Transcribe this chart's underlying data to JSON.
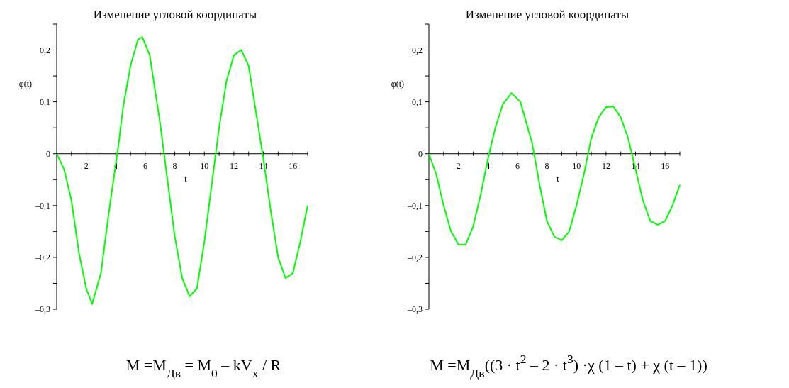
{
  "chart_data": [
    {
      "type": "line",
      "title": "Изменение угловой координаты",
      "xlabel": "t",
      "ylabel": "φ(t)",
      "xlim": [
        0,
        17
      ],
      "ylim": [
        -0.3,
        0.25
      ],
      "xticks": [
        {
          "value": 1,
          "label": null
        },
        2,
        {
          "value": 3,
          "label": null
        },
        4,
        {
          "value": 5,
          "label": null
        },
        6,
        {
          "value": 7,
          "label": null
        },
        8,
        {
          "value": 9,
          "label": null
        },
        10,
        {
          "value": 11,
          "label": null
        },
        12,
        {
          "value": 13,
          "label": null
        },
        14,
        {
          "value": 15,
          "label": null
        },
        16,
        {
          "value": 17,
          "label": null
        }
      ],
      "yticks": [
        {
          "value": -0.3,
          "label": "–0,3"
        },
        {
          "value": -0.25,
          "label": null
        },
        {
          "value": -0.2,
          "label": "–0,2"
        },
        {
          "value": -0.15,
          "label": null
        },
        {
          "value": -0.1,
          "label": "–0,1"
        },
        {
          "value": -0.05,
          "label": null
        },
        0,
        {
          "value": 0.05,
          "label": null
        },
        {
          "value": 0.1,
          "label": "0,1"
        },
        {
          "value": 0.15,
          "label": null
        },
        {
          "value": 0.2,
          "label": "0,2"
        },
        {
          "value": 0.25,
          "label": null
        }
      ],
      "series": [
        {
          "color": "#00ff00",
          "x": [
            0,
            0.5,
            1,
            1.5,
            2,
            2.4,
            3,
            3.5,
            4,
            4.2,
            4.5,
            5,
            5.5,
            5.8,
            6.3,
            7,
            7.5,
            8,
            8.5,
            9,
            9.5,
            10,
            10.5,
            11,
            11.5,
            12,
            12.5,
            13,
            13.5,
            14,
            14.5,
            15,
            15.5,
            16,
            16.5,
            17
          ],
          "values": [
            0,
            -0.03,
            -0.09,
            -0.19,
            -0.26,
            -0.29,
            -0.23,
            -0.12,
            -0.02,
            0.02,
            0.09,
            0.17,
            0.22,
            0.225,
            0.19,
            0.06,
            -0.05,
            -0.16,
            -0.24,
            -0.275,
            -0.26,
            -0.17,
            -0.06,
            0.05,
            0.14,
            0.19,
            0.2,
            0.17,
            0.08,
            -0.01,
            -0.11,
            -0.2,
            -0.24,
            -0.23,
            -0.17,
            -0.1
          ]
        }
      ],
      "grid": false,
      "marker": "none",
      "line_style": "solid",
      "annotations": [
        "M =M$_{Дв}$ = M$_{0}$  –  kV$_{x}$ / R"
      ]
    },
    {
      "type": "line",
      "title": "Изменение угловой координаты",
      "xlabel": "t",
      "ylabel": "φ(t)",
      "xlim": [
        0,
        17
      ],
      "ylim": [
        -0.3,
        0.25
      ],
      "xticks": [
        {
          "value": 1,
          "label": null
        },
        2,
        {
          "value": 3,
          "label": null
        },
        4,
        {
          "value": 5,
          "label": null
        },
        6,
        {
          "value": 7,
          "label": null
        },
        8,
        {
          "value": 9,
          "label": null
        },
        10,
        {
          "value": 11,
          "label": null
        },
        12,
        {
          "value": 13,
          "label": null
        },
        14,
        {
          "value": 15,
          "label": null
        },
        16,
        {
          "value": 17,
          "label": null
        }
      ],
      "yticks": [
        {
          "value": -0.3,
          "label": "–0,3"
        },
        {
          "value": -0.25,
          "label": null
        },
        {
          "value": -0.2,
          "label": "–0,2"
        },
        {
          "value": -0.15,
          "label": null
        },
        {
          "value": -0.1,
          "label": "–0,1"
        },
        {
          "value": -0.05,
          "label": null
        },
        0,
        {
          "value": 0.05,
          "label": null
        },
        {
          "value": 0.1,
          "label": "0,1"
        },
        {
          "value": 0.15,
          "label": null
        },
        {
          "value": 0.2,
          "label": "0,2"
        },
        {
          "value": 0.25,
          "label": null
        }
      ],
      "series": [
        {
          "color": "#00ff00",
          "x": [
            0,
            0.5,
            1,
            1.5,
            2,
            2.5,
            3,
            3.5,
            4,
            4.5,
            5,
            5.6,
            6.2,
            7,
            7.5,
            8,
            8.5,
            9,
            9.5,
            10,
            10.5,
            11,
            11.5,
            12,
            12.5,
            13,
            13.5,
            14,
            14.5,
            15,
            15.5,
            16,
            16.5,
            17
          ],
          "values": [
            0,
            -0.04,
            -0.1,
            -0.15,
            -0.175,
            -0.175,
            -0.14,
            -0.08,
            -0.01,
            0.05,
            0.095,
            0.117,
            0.1,
            0.02,
            -0.06,
            -0.13,
            -0.16,
            -0.167,
            -0.15,
            -0.1,
            -0.04,
            0.03,
            0.07,
            0.09,
            0.091,
            0.07,
            0.03,
            -0.03,
            -0.09,
            -0.13,
            -0.137,
            -0.13,
            -0.1,
            -0.06
          ]
        }
      ],
      "grid": false,
      "marker": "none",
      "line_style": "solid",
      "annotations": [
        "M =M$_{Дв}$((3 · t$^{2}$ – 2 · t$^{3}$) ·χ (1 – t)  + χ (t – 1))"
      ]
    }
  ]
}
